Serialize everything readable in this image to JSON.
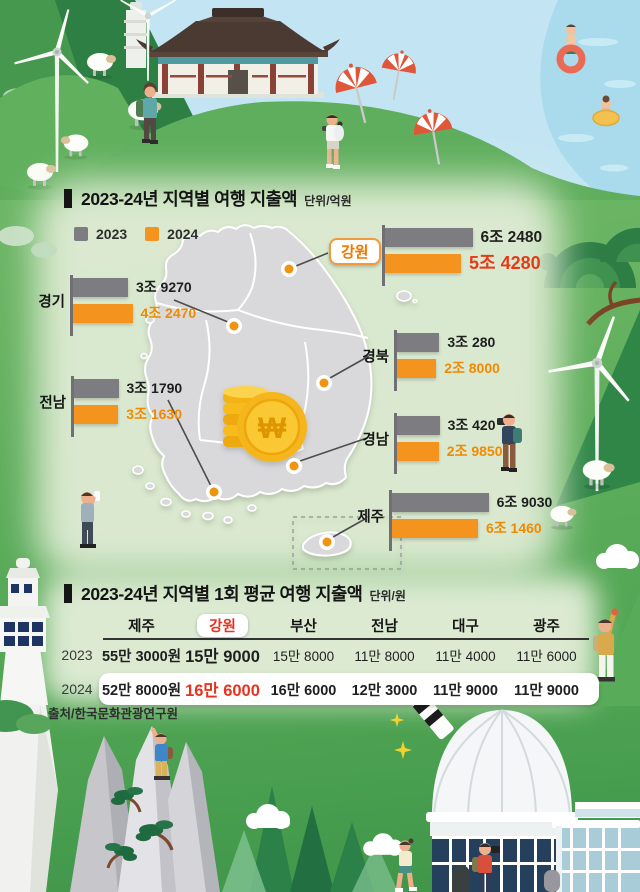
{
  "expenditure_chart": {
    "title": "2023-24년 지역별 여행 지출액",
    "unit": "단위/억원",
    "legend": [
      {
        "label": "2023",
        "color": "#7c7c81"
      },
      {
        "label": "2024",
        "color": "#f4941e"
      }
    ],
    "regions": [
      {
        "label": "강원",
        "v2023": "6조 2480",
        "v2024": "5조 4280",
        "n2023": 62480,
        "n2024": 54280,
        "highlight": true
      },
      {
        "label": "경기",
        "v2023": "3조 9270",
        "v2024": "4조 2470",
        "n2023": 39270,
        "n2024": 42470,
        "highlight": false
      },
      {
        "label": "경북",
        "v2023": "3조 280",
        "v2024": "2조 8000",
        "n2023": 30280,
        "n2024": 28000,
        "highlight": false
      },
      {
        "label": "전남",
        "v2023": "3조 1790",
        "v2024": "3조 1630",
        "n2023": 31790,
        "n2024": 31630,
        "highlight": false
      },
      {
        "label": "경남",
        "v2023": "3조 420",
        "v2024": "2조 9850",
        "n2023": 30420,
        "n2024": 29850,
        "highlight": false
      },
      {
        "label": "제주",
        "v2023": "6조 9030",
        "v2024": "6조 1460",
        "n2023": 69030,
        "n2024": 61460,
        "highlight": false
      }
    ]
  },
  "average_table": {
    "title": "2023-24년 지역별 1회 평균 여행 지출액",
    "unit": "단위/원",
    "columns": [
      "제주",
      "강원",
      "부산",
      "전남",
      "대구",
      "광주"
    ],
    "highlight_column": "강원",
    "rows": [
      {
        "year": "2023",
        "values": [
          "55만 3000원",
          "15만 9000",
          "15만 8000",
          "11만 8000",
          "11만 4000",
          "11만 6000"
        ]
      },
      {
        "year": "2024",
        "values": [
          "52만 8000원",
          "16만 6000",
          "16만 6000",
          "12만 3000",
          "11만 9000",
          "11만 9000"
        ]
      }
    ]
  },
  "source": "출처/한국문화관광연구원",
  "colors": {
    "bar_2023": "#7c7c81",
    "bar_2024": "#f4941e",
    "highlight_red": "#e73a17",
    "orange_text": "#f08a00",
    "map_fill": "#d9d9dc"
  },
  "chart_data": [
    {
      "type": "bar",
      "title": "2023-24년 지역별 여행 지출액",
      "ylabel": "지출액 (억원)",
      "xlabel": "",
      "categories": [
        "강원",
        "경기",
        "경북",
        "전남",
        "경남",
        "제주"
      ],
      "series": [
        {
          "name": "2023",
          "values": [
            62480,
            39270,
            30280,
            31790,
            30420,
            69030
          ]
        },
        {
          "name": "2024",
          "values": [
            54280,
            42470,
            28000,
            31630,
            29850,
            61460
          ]
        }
      ],
      "legend_position": "top-left",
      "grid": false,
      "orientation": "horizontal"
    },
    {
      "type": "table",
      "title": "2023-24년 지역별 1회 평균 여행 지출액",
      "unit": "원",
      "columns": [
        "제주",
        "강원",
        "부산",
        "전남",
        "대구",
        "광주"
      ],
      "rows": [
        [
          "2023",
          "55만 3000원",
          "15만 9000",
          "15만 8000",
          "11만 8000",
          "11만 4000",
          "11만 6000"
        ],
        [
          "2024",
          "52만 8000원",
          "16만 6000",
          "16만 6000",
          "12만 3000",
          "11만 9000",
          "11만 9000"
        ]
      ]
    }
  ]
}
